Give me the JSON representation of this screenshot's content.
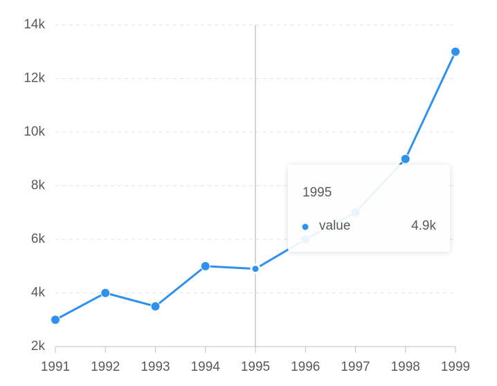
{
  "chart_data": {
    "type": "line",
    "categories": [
      "1991",
      "1992",
      "1993",
      "1994",
      "1995",
      "1996",
      "1997",
      "1998",
      "1999"
    ],
    "series": [
      {
        "name": "value",
        "color": "#3090ee",
        "values": [
          3000,
          4000,
          3500,
          5000,
          4900,
          6000,
          7000,
          9000,
          13000
        ]
      }
    ],
    "ylim": [
      2000,
      14000
    ],
    "yticks": [
      {
        "value": 2000,
        "label": "2k"
      },
      {
        "value": 4000,
        "label": "4k"
      },
      {
        "value": 6000,
        "label": "6k"
      },
      {
        "value": 8000,
        "label": "8k"
      },
      {
        "value": 10000,
        "label": "10k"
      },
      {
        "value": 12000,
        "label": "12k"
      },
      {
        "value": 14000,
        "label": "14k"
      }
    ],
    "grid": true,
    "tooltip": {
      "title": "1995",
      "label": "4.9k"
    }
  }
}
